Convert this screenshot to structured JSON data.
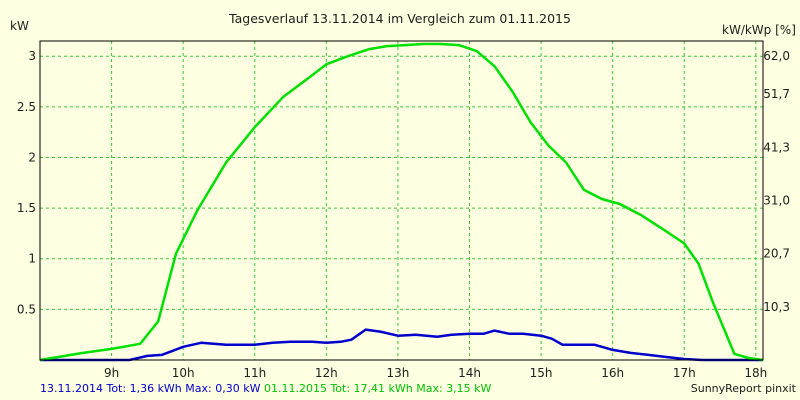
{
  "chart_data": {
    "type": "line",
    "title": "Tagesverlauf 13.11.2014 im Vergleich zum 01.11.2015",
    "ylabel_left": "kW",
    "ylabel_right": "kW/kWp [%]",
    "xlim": [
      8.0,
      18.1
    ],
    "ylim": [
      0,
      3.15
    ],
    "x_ticks": [
      {
        "v": 9,
        "label": "9h"
      },
      {
        "v": 10,
        "label": "10h"
      },
      {
        "v": 11,
        "label": "11h"
      },
      {
        "v": 12,
        "label": "12h"
      },
      {
        "v": 13,
        "label": "13h"
      },
      {
        "v": 14,
        "label": "14h"
      },
      {
        "v": 15,
        "label": "15h"
      },
      {
        "v": 16,
        "label": "16h"
      },
      {
        "v": 17,
        "label": "17h"
      },
      {
        "v": 18,
        "label": "18h"
      }
    ],
    "y_ticks_left": [
      {
        "v": 0.5,
        "label": "0.5"
      },
      {
        "v": 1,
        "label": "1"
      },
      {
        "v": 1.5,
        "label": "1.5"
      },
      {
        "v": 2,
        "label": "2"
      },
      {
        "v": 2.5,
        "label": "2.5"
      },
      {
        "v": 3,
        "label": "3"
      }
    ],
    "y_ticks_right": [
      {
        "v": 0.525,
        "label": "10,3"
      },
      {
        "v": 1.05,
        "label": "20,7"
      },
      {
        "v": 1.575,
        "label": "31,0"
      },
      {
        "v": 2.1,
        "label": "41,3"
      },
      {
        "v": 2.625,
        "label": "51,7"
      },
      {
        "v": 3.15,
        "label": "62,0"
      }
    ],
    "grid": true,
    "series": [
      {
        "name": "13.11.2014",
        "color": "#0000cc",
        "x": [
          8.0,
          9.25,
          9.5,
          9.7,
          9.85,
          10.0,
          10.25,
          10.6,
          11.0,
          11.25,
          11.5,
          11.8,
          12.0,
          12.2,
          12.35,
          12.55,
          12.75,
          13.0,
          13.25,
          13.55,
          13.75,
          14.0,
          14.2,
          14.35,
          14.55,
          14.75,
          15.0,
          15.15,
          15.3,
          15.5,
          15.75,
          16.0,
          16.25,
          16.5,
          16.75,
          17.0,
          17.25,
          17.5,
          17.75,
          18.1
        ],
        "values": [
          0,
          0,
          0.04,
          0.05,
          0.09,
          0.13,
          0.17,
          0.15,
          0.15,
          0.17,
          0.18,
          0.18,
          0.17,
          0.18,
          0.2,
          0.3,
          0.28,
          0.24,
          0.25,
          0.23,
          0.25,
          0.26,
          0.26,
          0.29,
          0.26,
          0.26,
          0.24,
          0.21,
          0.15,
          0.15,
          0.15,
          0.1,
          0.07,
          0.05,
          0.03,
          0.01,
          0,
          0,
          0,
          0
        ]
      },
      {
        "name": "01.11.2015",
        "color": "#00e000",
        "x": [
          8.0,
          8.6,
          9.0,
          9.4,
          9.65,
          9.9,
          10.2,
          10.6,
          11.0,
          11.4,
          11.8,
          12.0,
          12.3,
          12.6,
          12.85,
          13.1,
          13.35,
          13.6,
          13.85,
          14.1,
          14.35,
          14.6,
          14.85,
          15.1,
          15.35,
          15.6,
          15.85,
          16.1,
          16.4,
          16.75,
          17.0,
          17.2,
          17.4,
          17.7,
          17.9,
          18.1
        ],
        "values": [
          0,
          0.07,
          0.11,
          0.16,
          0.38,
          1.05,
          1.48,
          1.95,
          2.3,
          2.6,
          2.81,
          2.92,
          3.0,
          3.07,
          3.1,
          3.11,
          3.12,
          3.12,
          3.11,
          3.05,
          2.9,
          2.65,
          2.35,
          2.12,
          1.95,
          1.68,
          1.59,
          1.54,
          1.43,
          1.27,
          1.15,
          0.95,
          0.57,
          0.06,
          0.02,
          0
        ]
      }
    ]
  },
  "footer": {
    "left_blue": "13.11.2014 Tot: 1,36 kWh Max: 0,30 kW",
    "left_green": "01.11.2015 Tot: 17,41 kWh Max: 3,15 kW",
    "right": "SunnyReport pinxit"
  }
}
